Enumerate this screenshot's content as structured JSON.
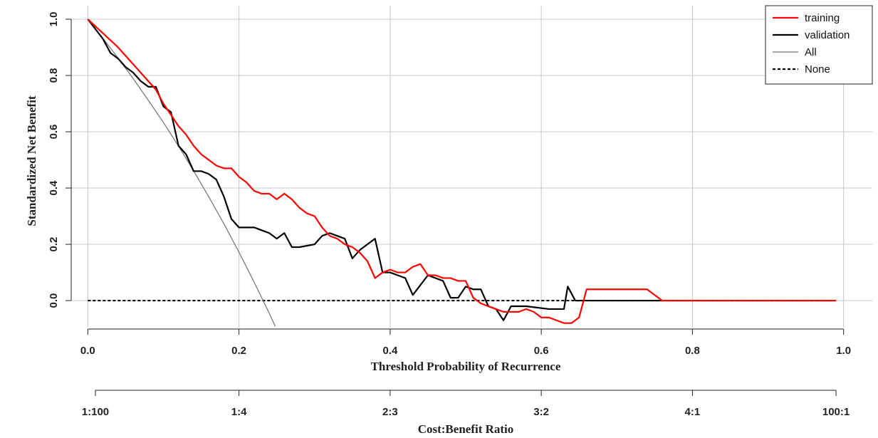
{
  "chart_data": {
    "type": "line",
    "xlabel": "Threshold Probability of Recurrence",
    "ylabel": "Standardized Net Benefit",
    "xlim": [
      -0.022,
      1.038
    ],
    "ylim": [
      -0.096,
      1.048
    ],
    "xticks": [
      {
        "value": 0,
        "label": "0.0"
      },
      0.2,
      0.4,
      0.6,
      0.8,
      {
        "value": 1,
        "label": "1.0"
      }
    ],
    "yticks": [
      {
        "value": 0,
        "label": "0.0"
      },
      0.2,
      0.4,
      0.6,
      0.8,
      {
        "value": 1,
        "label": "1.0"
      }
    ],
    "grid": true,
    "legend": "top-right",
    "series": [
      {
        "name": "training",
        "color": "#ff0000",
        "linestyle": "solid",
        "x": [
          0,
          0.02,
          0.04,
          0.06,
          0.08,
          0.09,
          0.1,
          0.11,
          0.12,
          0.13,
          0.14,
          0.15,
          0.16,
          0.17,
          0.18,
          0.19,
          0.2,
          0.21,
          0.22,
          0.23,
          0.24,
          0.25,
          0.26,
          0.27,
          0.28,
          0.29,
          0.3,
          0.31,
          0.32,
          0.33,
          0.34,
          0.35,
          0.36,
          0.37,
          0.38,
          0.39,
          0.4,
          0.41,
          0.42,
          0.43,
          0.44,
          0.45,
          0.46,
          0.47,
          0.48,
          0.49,
          0.5,
          0.51,
          0.52,
          0.53,
          0.54,
          0.55,
          0.56,
          0.57,
          0.58,
          0.59,
          0.6,
          0.61,
          0.62,
          0.63,
          0.64,
          0.65,
          0.66,
          0.74,
          0.76,
          0.99
        ],
        "values": [
          1,
          0.95,
          0.9,
          0.84,
          0.78,
          0.75,
          0.7,
          0.66,
          0.62,
          0.59,
          0.55,
          0.52,
          0.5,
          0.48,
          0.47,
          0.47,
          0.44,
          0.42,
          0.39,
          0.38,
          0.38,
          0.36,
          0.38,
          0.36,
          0.33,
          0.31,
          0.3,
          0.26,
          0.23,
          0.22,
          0.2,
          0.19,
          0.17,
          0.14,
          0.08,
          0.1,
          0.11,
          0.1,
          0.1,
          0.12,
          0.13,
          0.09,
          0.09,
          0.08,
          0.08,
          0.07,
          0.07,
          0.01,
          -0.01,
          -0.02,
          -0.03,
          -0.04,
          -0.04,
          -0.04,
          -0.03,
          -0.04,
          -0.06,
          -0.06,
          -0.07,
          -0.08,
          -0.08,
          -0.06,
          0.04,
          0.04,
          0,
          0
        ]
      },
      {
        "name": "validation",
        "color": "#000000",
        "linestyle": "solid",
        "x": [
          0,
          0.02,
          0.03,
          0.04,
          0.05,
          0.06,
          0.07,
          0.08,
          0.09,
          0.1,
          0.11,
          0.12,
          0.13,
          0.14,
          0.15,
          0.16,
          0.17,
          0.18,
          0.19,
          0.2,
          0.21,
          0.22,
          0.23,
          0.24,
          0.25,
          0.26,
          0.27,
          0.28,
          0.3,
          0.31,
          0.32,
          0.33,
          0.34,
          0.35,
          0.36,
          0.37,
          0.38,
          0.39,
          0.4,
          0.41,
          0.42,
          0.43,
          0.45,
          0.47,
          0.48,
          0.49,
          0.5,
          0.51,
          0.52,
          0.53,
          0.54,
          0.55,
          0.56,
          0.58,
          0.61,
          0.62,
          0.63,
          0.635,
          0.645,
          0.99
        ],
        "values": [
          1,
          0.93,
          0.88,
          0.86,
          0.83,
          0.81,
          0.78,
          0.76,
          0.76,
          0.69,
          0.67,
          0.55,
          0.52,
          0.46,
          0.46,
          0.45,
          0.43,
          0.37,
          0.29,
          0.26,
          0.26,
          0.26,
          0.25,
          0.24,
          0.22,
          0.24,
          0.19,
          0.19,
          0.2,
          0.23,
          0.24,
          0.23,
          0.22,
          0.15,
          0.18,
          0.2,
          0.22,
          0.1,
          0.1,
          0.09,
          0.08,
          0.02,
          0.09,
          0.07,
          0.01,
          0.01,
          0.05,
          0.04,
          0.04,
          -0.02,
          -0.03,
          -0.07,
          -0.02,
          -0.02,
          -0.03,
          -0.03,
          -0.03,
          0.05,
          0,
          0
        ]
      },
      {
        "name": "All",
        "color": "#707070",
        "linestyle": "thin",
        "x": [
          0,
          0.02,
          0.04,
          0.06,
          0.08,
          0.1,
          0.12,
          0.14,
          0.16,
          0.18,
          0.2,
          0.22,
          0.24,
          0.248
        ],
        "values": [
          1,
          0.932,
          0.862,
          0.789,
          0.712,
          0.633,
          0.549,
          0.461,
          0.369,
          0.273,
          0.172,
          0.066,
          -0.045,
          -0.092
        ]
      },
      {
        "name": "None",
        "color": "#000000",
        "linestyle": "dotted",
        "x": [
          0,
          0.99
        ],
        "values": [
          0,
          0
        ]
      }
    ],
    "secondary_x_axis": {
      "label": "Cost:Benefit Ratio",
      "ticks": [
        {
          "value": 0.01,
          "label": "1:100"
        },
        {
          "value": 0.2,
          "label": "1:4"
        },
        {
          "value": 0.4,
          "label": "2:3"
        },
        {
          "value": 0.6,
          "label": "3:2"
        },
        {
          "value": 0.8,
          "label": "4:1"
        },
        {
          "value": 0.99,
          "label": "100:1"
        }
      ]
    }
  }
}
